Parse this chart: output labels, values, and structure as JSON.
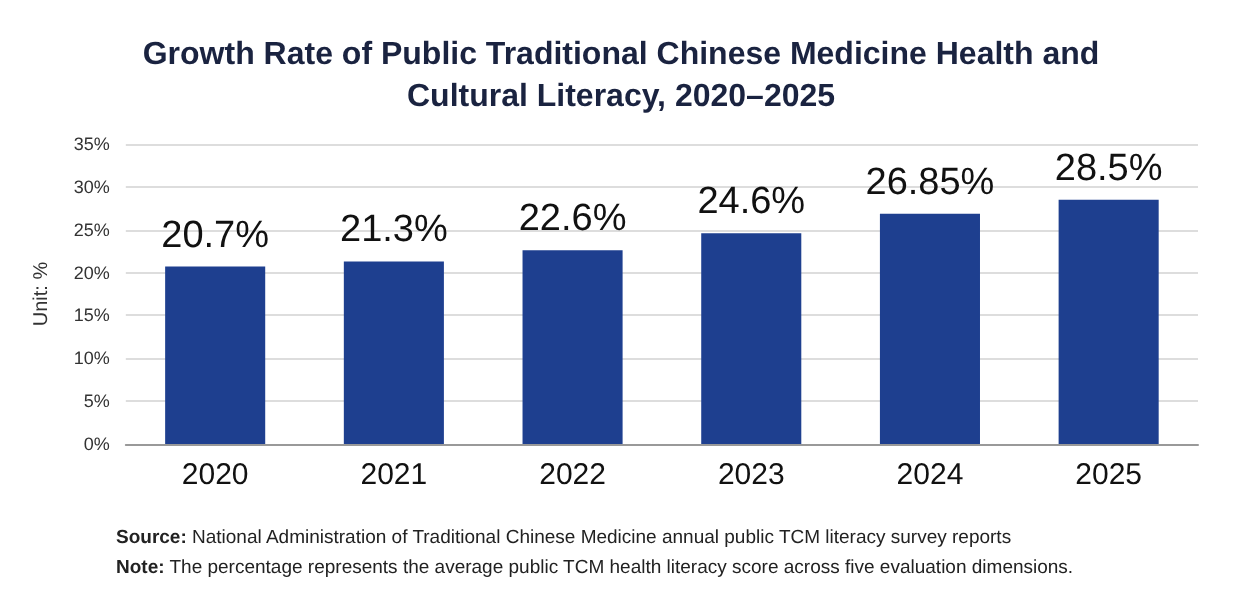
{
  "chart_data": {
    "type": "bar",
    "title": "Growth Rate of Public Traditional Chinese Medicine Health and\nCultural Literacy, 2020–2025",
    "ylabel": "Unit: %",
    "categories": [
      "2020",
      "2021",
      "2022",
      "2023",
      "2024",
      "2025"
    ],
    "values": [
      20.7,
      21.3,
      22.6,
      24.6,
      26.85,
      28.5
    ],
    "value_labels": [
      "20.7%",
      "21.3%",
      "22.6%",
      "24.6%",
      "26.85%",
      "28.5%"
    ],
    "color": "#1e3f8f",
    "ylim": [
      0,
      35
    ],
    "yticks": [
      {
        "value": 0,
        "label": "0%"
      },
      {
        "value": 5,
        "label": "5%"
      },
      {
        "value": 10,
        "label": "10%"
      },
      {
        "value": 15,
        "label": "15%"
      },
      {
        "value": 20,
        "label": "20%"
      },
      {
        "value": 25,
        "label": "25%"
      },
      {
        "value": 30,
        "label": "30%"
      },
      {
        "value": 35,
        "label": "35%"
      }
    ],
    "grid": "y",
    "annotations": [
      "Source: National Administration of Traditional Chinese Medicine annual public TCM literacy survey reports",
      "Note: The percentage represents the average public TCM health literacy score across five evaluation dimensions."
    ]
  }
}
